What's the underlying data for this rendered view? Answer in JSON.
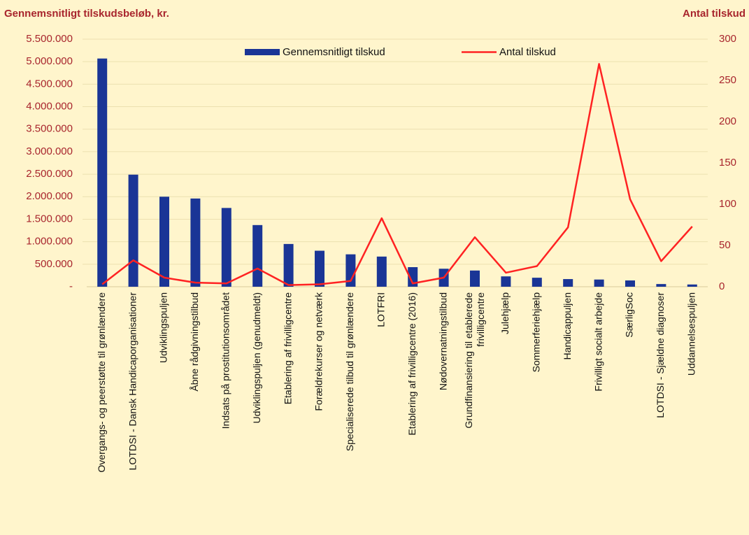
{
  "chart_data": {
    "type": "bar-line",
    "y_title": "Gennemsnitligt tilskudsbeløb, kr.",
    "y2_title": "Antal tilskud",
    "grid": true,
    "legend": "top",
    "categories": [
      "Overgangs- og peerstøtte til grønlændere",
      "LOTDSI - Dansk Handicaporganisationer",
      "Udviklingspuljen",
      "Åbne rådgivningstilbud",
      "Indsats på prostitutionsområdet",
      "Udviklingspuljen (genudmeldt)",
      "Etablering af frivilligcentre",
      "Forældrekurser og netværk",
      "Specialiserede tilbud til grønlændere",
      "LOTFRI",
      "Etablering af frivilligcentre (2016)",
      "Nødovernatningstilbud",
      "Grundfinansiering til etablerede frivilligcentre",
      "Julehjælp",
      "Sommerferiehjælp",
      "Handicappuljen",
      "Frivilligt socialt arbejde",
      "SærligSoc",
      "LOTDSI - Sjældne diagnoser",
      "Uddannelsespuljen"
    ],
    "series": [
      {
        "name": "Gennemsnitligt tilskud",
        "type": "bar",
        "color": "#1a3596",
        "values": [
          5070000,
          2490000,
          2000000,
          1960000,
          1750000,
          1370000,
          950000,
          800000,
          720000,
          670000,
          435000,
          400000,
          360000,
          230000,
          200000,
          170000,
          160000,
          140000,
          60000,
          50000
        ]
      },
      {
        "name": "Antal tilskud",
        "type": "line",
        "axis": "y2",
        "color": "#ff2222",
        "values": [
          3,
          32,
          11,
          5,
          4,
          22,
          2,
          3,
          7,
          83,
          4,
          11,
          60,
          17,
          25,
          72,
          270,
          106,
          31,
          73
        ]
      }
    ],
    "ylim": [
      0,
      5500000
    ],
    "yticks": [
      {
        "value": 0,
        "label": "-"
      },
      {
        "value": 500000,
        "label": "500.000"
      },
      {
        "value": 1000000,
        "label": "1.000.000"
      },
      {
        "value": 1500000,
        "label": "1.500.000"
      },
      {
        "value": 2000000,
        "label": "2.000.000"
      },
      {
        "value": 2500000,
        "label": "2.500.000"
      },
      {
        "value": 3000000,
        "label": "3.000.000"
      },
      {
        "value": 3500000,
        "label": "3.500.000"
      },
      {
        "value": 4000000,
        "label": "4.000.000"
      },
      {
        "value": 4500000,
        "label": "4.500.000"
      },
      {
        "value": 5000000,
        "label": "5.000.000"
      },
      {
        "value": 5500000,
        "label": "5.500.000"
      }
    ],
    "y2lim": [
      0,
      300
    ],
    "y2ticks": [
      0,
      50,
      100,
      150,
      200,
      250,
      300
    ]
  }
}
